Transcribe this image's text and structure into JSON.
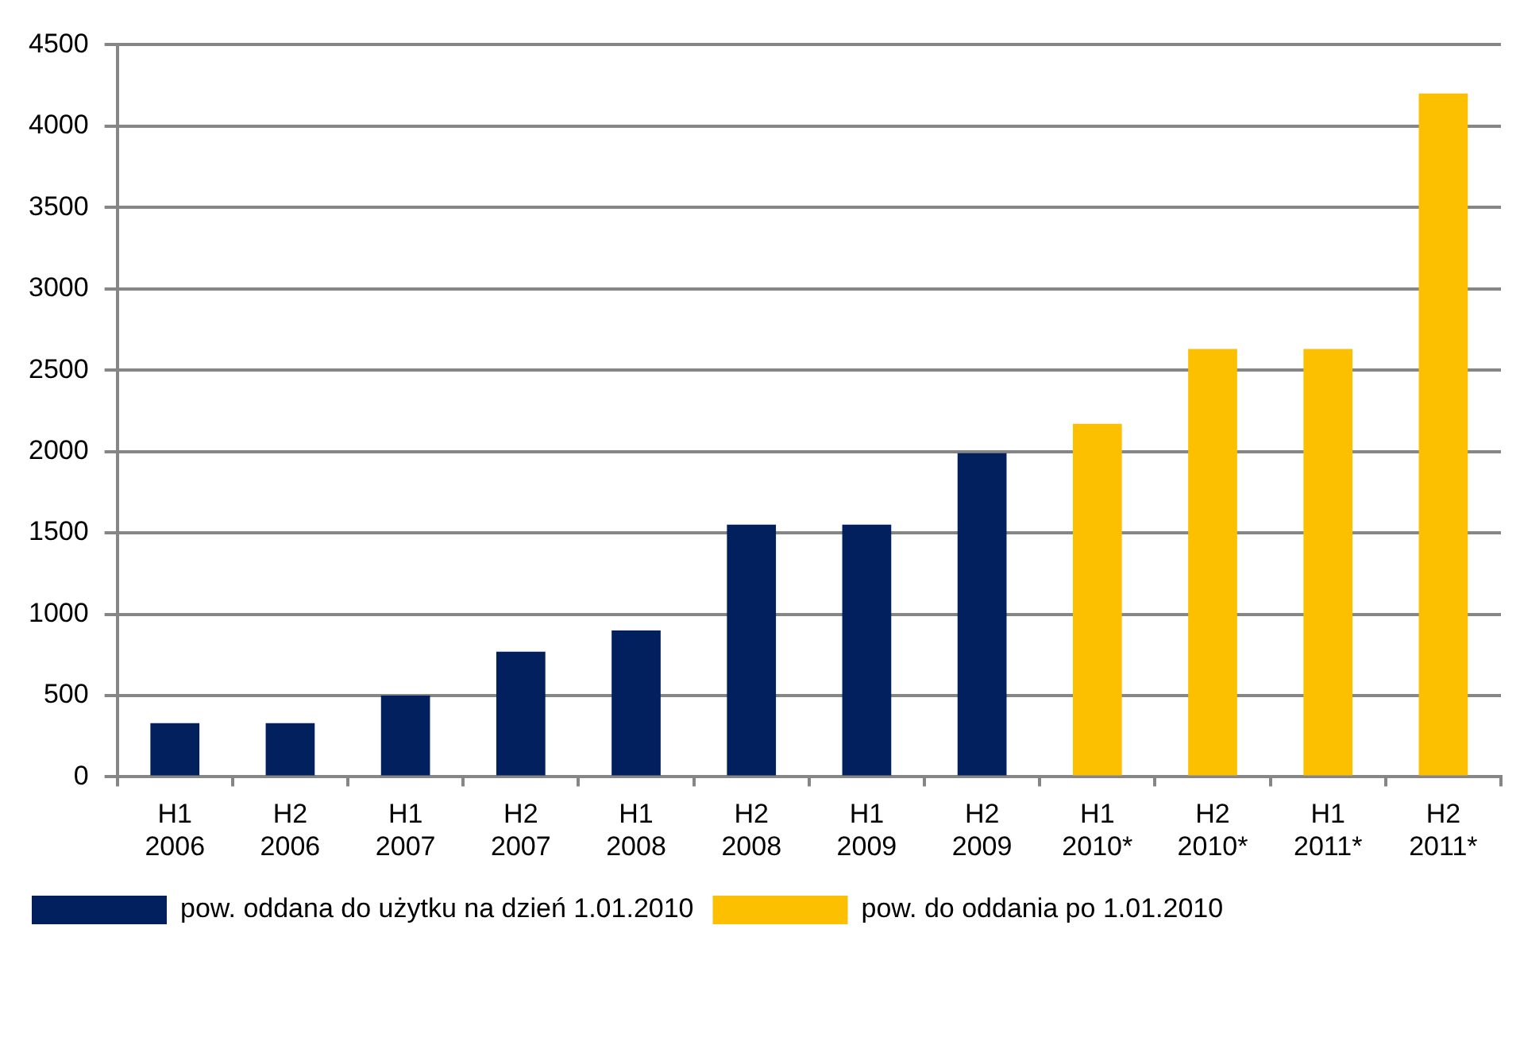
{
  "chart_data": {
    "type": "bar",
    "categories": [
      "H1\n2006",
      "H2\n2006",
      "H1\n2007",
      "H2\n2007",
      "H1\n2008",
      "H2\n2008",
      "H1\n2009",
      "H2\n2009",
      "H1\n2010*",
      "H2\n2010*",
      "H1\n2011*",
      "H2\n2011*"
    ],
    "series": [
      {
        "name": "pow. oddana do użytku na dzień 1.01.2010",
        "color": "#021f5e",
        "values": [
          330,
          330,
          500,
          770,
          900,
          1550,
          1550,
          1990,
          null,
          null,
          null,
          null
        ]
      },
      {
        "name": "pow. do oddania po 1.01.2010",
        "color": "#fdc000",
        "values": [
          null,
          null,
          null,
          null,
          null,
          null,
          null,
          null,
          2170,
          2630,
          2630,
          4200
        ]
      }
    ],
    "ylim": [
      0,
      4500
    ],
    "yticks": [
      0,
      500,
      1000,
      1500,
      2000,
      2500,
      3000,
      3500,
      4000,
      4500
    ],
    "grid": "y",
    "legend": "bottom left"
  }
}
